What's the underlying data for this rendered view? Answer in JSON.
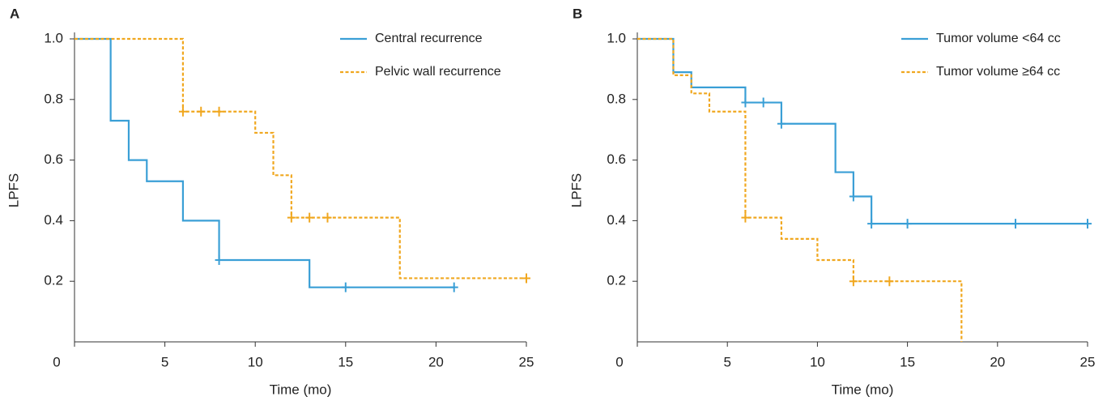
{
  "chart_data": [
    {
      "type": "step",
      "label": "A",
      "xlabel": "Time (mo)",
      "ylabel": "LPFS",
      "xlim": [
        0,
        25
      ],
      "xticks": [
        0,
        5,
        10,
        15,
        20,
        25
      ],
      "ylim": [
        0,
        1
      ],
      "yticks": [
        0.2,
        0.4,
        0.6,
        0.8,
        {
          "value": 1,
          "label": "1.0"
        }
      ],
      "legend": "upper right",
      "series": [
        {
          "name": "Central recurrence",
          "color": "#3a9fd6",
          "dashed": false,
          "x": [
            0,
            2,
            3,
            4,
            6,
            8,
            13,
            21
          ],
          "values": [
            1,
            0.73,
            0.6,
            0.53,
            0.4,
            0.27,
            0.18,
            0.18
          ],
          "censor_x": [
            8,
            15,
            21
          ],
          "censor_values": [
            0.27,
            0.18,
            0.18
          ]
        },
        {
          "name": "Pelvic wall recurrence",
          "color": "#f0a71f",
          "dashed": true,
          "x": [
            0,
            6,
            10,
            11,
            12,
            18,
            25
          ],
          "values": [
            1,
            0.76,
            0.69,
            0.55,
            0.41,
            0.21,
            0.21
          ],
          "censor_x": [
            6,
            7,
            8,
            12,
            13,
            14,
            25
          ],
          "censor_values": [
            0.76,
            0.76,
            0.76,
            0.41,
            0.41,
            0.41,
            0.21
          ]
        }
      ]
    },
    {
      "type": "step",
      "label": "B",
      "xlabel": "Time (mo)",
      "ylabel": "LPFS",
      "xlim": [
        0,
        25
      ],
      "xticks": [
        0,
        5,
        10,
        15,
        20,
        25
      ],
      "ylim": [
        0,
        1
      ],
      "yticks": [
        0.2,
        0.4,
        0.6,
        0.8,
        {
          "value": 1,
          "label": "1.0"
        }
      ],
      "legend": "upper right",
      "series": [
        {
          "name": "Tumor volume <64 cc",
          "color": "#3a9fd6",
          "dashed": false,
          "x": [
            0,
            2,
            3,
            6,
            8,
            11,
            12,
            13,
            25
          ],
          "values": [
            1,
            0.89,
            0.84,
            0.79,
            0.72,
            0.56,
            0.48,
            0.39,
            0.39
          ],
          "censor_x": [
            6,
            7,
            8,
            12,
            13,
            15,
            21,
            25
          ],
          "censor_values": [
            0.79,
            0.79,
            0.72,
            0.48,
            0.39,
            0.39,
            0.39,
            0.39
          ]
        },
        {
          "name": "Tumor volume ≥64 cc",
          "color": "#f0a71f",
          "dashed": true,
          "x": [
            0,
            2,
            3,
            4,
            6,
            8,
            10,
            12,
            18
          ],
          "values": [
            1,
            0.88,
            0.82,
            0.76,
            0.41,
            0.34,
            0.27,
            0.2,
            0
          ],
          "censor_x": [
            6,
            12,
            14
          ],
          "censor_values": [
            0.41,
            0.2,
            0.2
          ]
        }
      ]
    }
  ]
}
